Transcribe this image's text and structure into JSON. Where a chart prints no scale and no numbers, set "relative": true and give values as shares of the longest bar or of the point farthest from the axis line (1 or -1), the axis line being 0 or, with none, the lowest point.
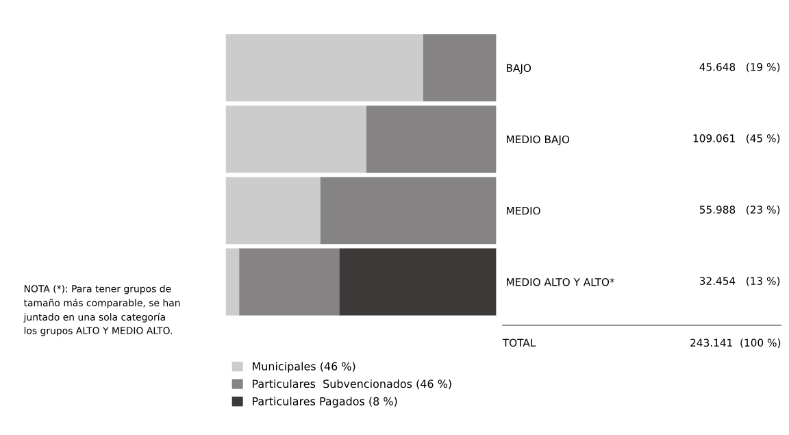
{
  "chart_data": {
    "type": "bar",
    "orientation": "horizontal",
    "stacked": true,
    "relative": true,
    "categories": [
      "BAJO",
      "MEDIO BAJO",
      "MEDIO",
      "MEDIO ALTO Y ALTO*"
    ],
    "series": [
      {
        "name": "Municipales (46 %)",
        "color": "#cccccc",
        "values": [
          0.73,
          0.52,
          0.35,
          0.05
        ]
      },
      {
        "name": "Particulares  Subvencionados (46 %)",
        "color": "#858383",
        "values": [
          0.27,
          0.48,
          0.65,
          0.37
        ]
      },
      {
        "name": "Particulares Pagados (8 %)",
        "color": "#3d3939",
        "values": [
          0,
          0,
          0,
          0.58
        ]
      }
    ],
    "annotations": [
      "45.648   (19 %)",
      "109.061   (45 %)",
      "55.988   (23 %)",
      "32.454   (13 %)",
      "TOTAL",
      "243.141  (100 %)",
      "NOTA (*): Para tener grupos de\ntamaño más comparable, se han\njuntado en una sola categoría\nlos grupos ALTO Y MEDIO ALTO."
    ],
    "legend": "bottom",
    "tick_labels": "y",
    "grid": false
  }
}
